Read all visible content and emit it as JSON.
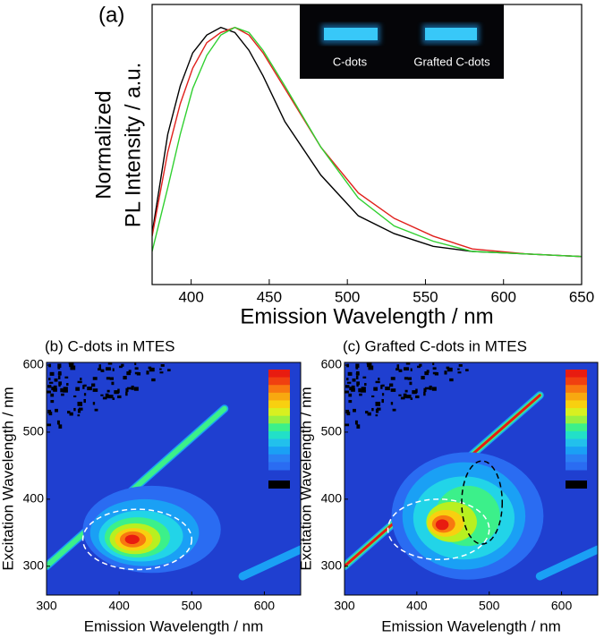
{
  "chart_data": [
    {
      "type": "line",
      "panel_label": "(a)",
      "xlabel": "Emission Wavelength / nm",
      "ylabel": [
        "Normalized",
        "PL Intensity / a.u."
      ],
      "inset_labels": [
        "C-dots",
        "Grafted C-dots"
      ],
      "x": [
        375,
        385,
        393,
        401,
        410,
        419,
        428,
        437,
        446,
        460,
        483,
        507,
        530,
        555,
        580,
        615,
        650
      ],
      "series": [
        {
          "color": "#000000",
          "values": [
            0.2,
            0.59,
            0.78,
            0.91,
            0.98,
            1.01,
            0.99,
            0.92,
            0.82,
            0.64,
            0.43,
            0.27,
            0.2,
            0.15,
            0.13,
            0.12,
            0.11
          ]
        },
        {
          "color": "#e0201c",
          "values": [
            0.19,
            0.52,
            0.71,
            0.85,
            0.95,
            0.99,
            1.01,
            0.98,
            0.91,
            0.77,
            0.54,
            0.36,
            0.26,
            0.19,
            0.14,
            0.12,
            0.11
          ]
        },
        {
          "color": "#30d030",
          "values": [
            0.13,
            0.38,
            0.59,
            0.77,
            0.9,
            0.98,
            1.01,
            0.99,
            0.92,
            0.78,
            0.54,
            0.34,
            0.23,
            0.17,
            0.13,
            0.12,
            0.11
          ]
        }
      ],
      "xlim": [
        375,
        650
      ],
      "xticks": [
        400,
        450,
        500,
        550,
        600,
        650
      ],
      "ylim": [
        0,
        1.1
      ]
    },
    {
      "type": "contour",
      "title": "(b) C-dots in MTES",
      "xlabel": "Emission Wavelength / nm",
      "ylabel": "Excitation Wavelength / nm",
      "xlim": [
        300,
        650
      ],
      "xticks": [
        300,
        400,
        500,
        600
      ],
      "ylim": [
        257,
        604
      ],
      "yticks": [
        300,
        400,
        500,
        600
      ],
      "background": "#1f3fd0",
      "levels": [
        {
          "center": [
            445,
            355
          ],
          "radius": [
            95,
            65
          ],
          "color": "#2a6cf2"
        },
        {
          "center": [
            435,
            350
          ],
          "radius": [
            75,
            50
          ],
          "color": "#1aa0f5"
        },
        {
          "center": [
            430,
            345
          ],
          "radius": [
            58,
            38
          ],
          "color": "#22d4e8"
        },
        {
          "center": [
            425,
            343
          ],
          "radius": [
            45,
            30
          ],
          "color": "#3cf08a"
        },
        {
          "center": [
            422,
            341
          ],
          "radius": [
            35,
            23
          ],
          "color": "#b8f020"
        },
        {
          "center": [
            420,
            340
          ],
          "radius": [
            26,
            17
          ],
          "color": "#f8d010"
        },
        {
          "center": [
            419,
            340
          ],
          "radius": [
            18,
            12
          ],
          "color": "#f87810"
        },
        {
          "center": [
            418,
            340
          ],
          "radius": [
            10,
            7
          ],
          "color": "#e81c10"
        }
      ],
      "outlines": [
        {
          "center": [
            425,
            340
          ],
          "radius": [
            75,
            45
          ],
          "color": "#ffffff"
        }
      ],
      "scatter_lines": [
        {
          "x": [
            300,
            545
          ],
          "y": [
            300,
            535
          ],
          "colors": [
            "#1aa0f5",
            "#3cf08a"
          ]
        },
        {
          "x": [
            570,
            650
          ],
          "y": [
            285,
            325
          ],
          "colors": [
            "#1aa0f5"
          ]
        }
      ],
      "colorbar": [
        "#e81c10",
        "#f04010",
        "#f87810",
        "#f8a810",
        "#f8d010",
        "#d8f020",
        "#98f040",
        "#3cf08a",
        "#22e0c8",
        "#22c0ec",
        "#1aa0f5",
        "#2a80f4",
        "#2a6cf2"
      ]
    },
    {
      "type": "contour",
      "title": "(c) Grafted C-dots in MTES",
      "xlabel": "Emission Wavelength / nm",
      "ylabel": "Excitation Wavelength / nm",
      "xlim": [
        300,
        650
      ],
      "xticks": [
        300,
        400,
        500,
        600
      ],
      "ylim": [
        257,
        604
      ],
      "yticks": [
        300,
        400,
        500,
        600
      ],
      "background": "#1f3fd0",
      "levels": [
        {
          "center": [
            470,
            375
          ],
          "radius": [
            105,
            95
          ],
          "color": "#2a6cf2"
        },
        {
          "center": [
            465,
            375
          ],
          "radius": [
            85,
            80
          ],
          "color": "#1aa0f5"
        },
        {
          "center": [
            465,
            372
          ],
          "radius": [
            70,
            62
          ],
          "color": "#22d4e8"
        },
        {
          "center": [
            470,
            375
          ],
          "radius": [
            45,
            45
          ],
          "color": "#3cf08a"
        },
        {
          "center": [
            448,
            366
          ],
          "radius": [
            35,
            30
          ],
          "color": "#b8f020"
        },
        {
          "center": [
            440,
            364
          ],
          "radius": [
            25,
            20
          ],
          "color": "#f8d010"
        },
        {
          "center": [
            437,
            363
          ],
          "radius": [
            16,
            13
          ],
          "color": "#f87810"
        },
        {
          "center": [
            435,
            362
          ],
          "radius": [
            9,
            8
          ],
          "color": "#e81c10"
        }
      ],
      "outlines": [
        {
          "center": [
            430,
            355
          ],
          "radius": [
            70,
            45
          ],
          "color": "#ffffff"
        },
        {
          "center": [
            490,
            395
          ],
          "radius": [
            28,
            62
          ],
          "color": "#000000"
        }
      ],
      "scatter_lines": [
        {
          "x": [
            300,
            570
          ],
          "y": [
            300,
            555
          ],
          "colors": [
            "#1aa0f5",
            "#3cf08a",
            "#e81c10"
          ]
        },
        {
          "x": [
            570,
            650
          ],
          "y": [
            285,
            325
          ],
          "colors": [
            "#1aa0f5"
          ]
        }
      ],
      "colorbar": [
        "#e81c10",
        "#f04010",
        "#f87810",
        "#f8a810",
        "#f8d010",
        "#d8f020",
        "#98f040",
        "#3cf08a",
        "#22e0c8",
        "#22c0ec",
        "#1aa0f5",
        "#2a80f4",
        "#2a6cf2"
      ]
    }
  ]
}
